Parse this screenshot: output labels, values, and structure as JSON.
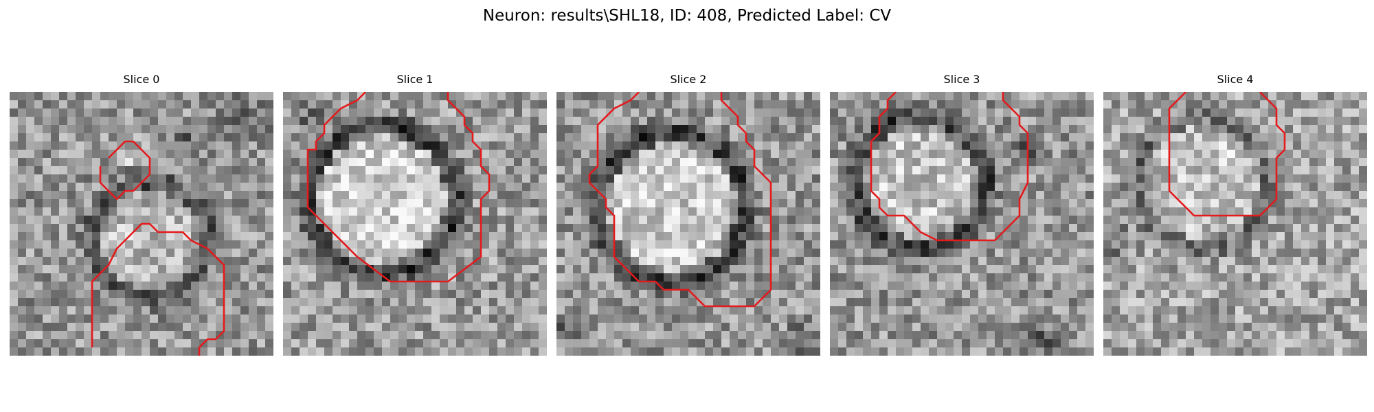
{
  "figure": {
    "title": "Neuron: results\\SHL18, ID: 408, Predicted Label: CV"
  },
  "panels": [
    {
      "title": "Slice 0"
    },
    {
      "title": "Slice 1"
    },
    {
      "title": "Slice 2"
    },
    {
      "title": "Slice 3"
    },
    {
      "title": "Slice 4"
    }
  ],
  "colors": {
    "contour": "#e41a1c",
    "background": "#ffffff"
  }
}
